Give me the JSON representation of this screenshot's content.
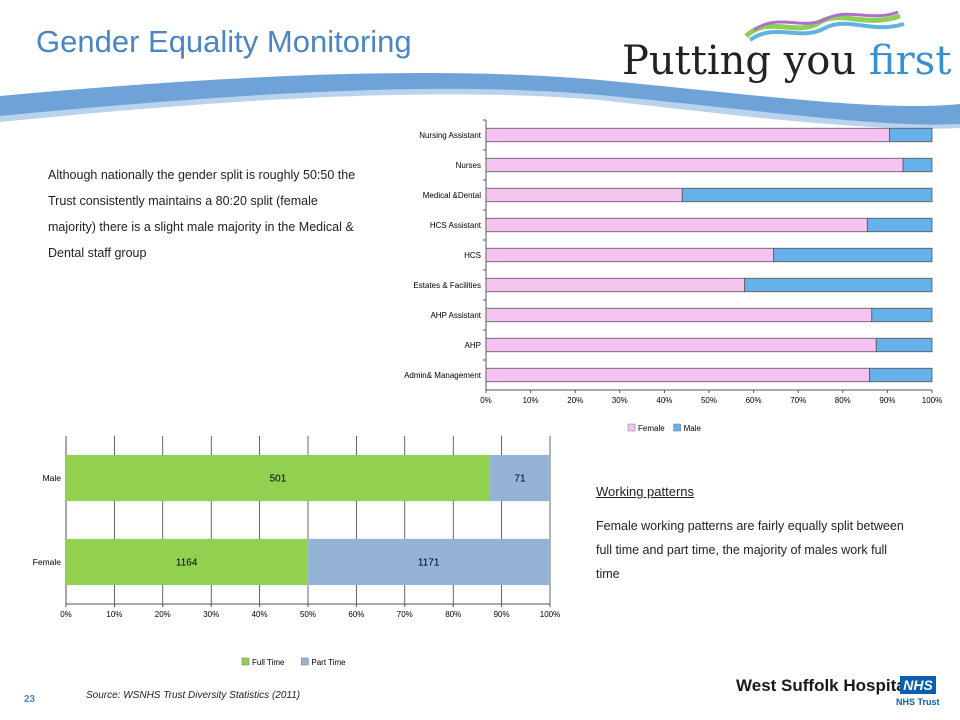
{
  "header": {
    "title": "Gender Equality Monitoring",
    "tagline_part1": "Putting you ",
    "tagline_part2": "first"
  },
  "intro_text": "Although nationally the gender split is roughly 50:50 the Trust consistently maintains a 80:20 split (female majority) there is a slight male majority in the Medical & Dental staff group",
  "working_patterns": {
    "heading": "Working patterns",
    "text": "Female working patterns are fairly equally split between full time and part time, the majority of males work full time"
  },
  "footer": {
    "source": "Source: WSNHS Trust Diversity Statistics (2011)",
    "page_number": "23",
    "org_name": "West Suffolk Hospital",
    "nhs_logo": "NHS",
    "nhs_trust": "NHS Trust"
  },
  "colors": {
    "female": "#f5c3f0",
    "male": "#66b1ea",
    "full_time": "#92d050",
    "part_time": "#95b3d7",
    "title": "#4a86c5",
    "swoosh": "#6fa3d8"
  },
  "chart_data": [
    {
      "type": "bar",
      "orientation": "horizontal",
      "stacked": "percent",
      "categories": [
        "Nursing Assistant",
        "Nurses",
        "Medical &Dental",
        "HCS Assistant",
        "HCS",
        "Estates & Facilities",
        "AHP Assistant",
        "AHP",
        "Admin& Management"
      ],
      "series": [
        {
          "name": "Female",
          "values": [
            90.5,
            93.5,
            44,
            85.5,
            64.5,
            58,
            86.5,
            87.5,
            86
          ]
        },
        {
          "name": "Male",
          "values": [
            9.5,
            6.5,
            56,
            14.5,
            35.5,
            42,
            13.5,
            12.5,
            14
          ]
        }
      ],
      "xticks": [
        "0%",
        "10%",
        "20%",
        "30%",
        "40%",
        "50%",
        "60%",
        "70%",
        "80%",
        "90%",
        "100%"
      ],
      "xlim": [
        0,
        100
      ],
      "grid": false,
      "legend": "bottom"
    },
    {
      "type": "bar",
      "orientation": "horizontal",
      "stacked": "percent",
      "categories": [
        "Male",
        "Female"
      ],
      "series": [
        {
          "name": "Full Time",
          "values": [
            501,
            1164
          ]
        },
        {
          "name": "Part Time",
          "values": [
            71,
            1171
          ]
        }
      ],
      "data_labels": true,
      "xticks": [
        "0%",
        "10%",
        "20%",
        "30%",
        "40%",
        "50%",
        "60%",
        "70%",
        "80%",
        "90%",
        "100%"
      ],
      "xlim": [
        0,
        100
      ],
      "grid": true,
      "legend": "bottom"
    }
  ]
}
